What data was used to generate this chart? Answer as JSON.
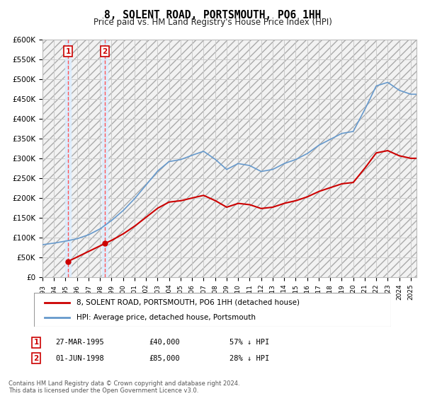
{
  "title": "8, SOLENT ROAD, PORTSMOUTH, PO6 1HH",
  "subtitle": "Price paid vs. HM Land Registry's House Price Index (HPI)",
  "footer": "Contains HM Land Registry data © Crown copyright and database right 2024.\nThis data is licensed under the Open Government Licence v3.0.",
  "legend_line1": "8, SOLENT ROAD, PORTSMOUTH, PO6 1HH (detached house)",
  "legend_line2": "HPI: Average price, detached house, Portsmouth",
  "transaction1_label": "1",
  "transaction1_date": "27-MAR-1995",
  "transaction1_price": "£40,000",
  "transaction1_hpi": "57% ↓ HPI",
  "transaction2_label": "2",
  "transaction2_date": "01-JUN-1998",
  "transaction2_price": "£85,000",
  "transaction2_hpi": "28% ↓ HPI",
  "ylim": [
    0,
    600000
  ],
  "yticks": [
    0,
    50000,
    100000,
    150000,
    200000,
    250000,
    300000,
    350000,
    400000,
    450000,
    500000,
    550000,
    600000
  ],
  "ytick_labels": [
    "£0",
    "£50K",
    "£100K",
    "£150K",
    "£200K",
    "£250K",
    "£300K",
    "£350K",
    "£400K",
    "£450K",
    "£500K",
    "£550K",
    "£600K"
  ],
  "hpi_color": "#6699cc",
  "price_color": "#cc0000",
  "grid_color": "#cccccc",
  "transaction1_x": 1995.23,
  "transaction1_y": 40000,
  "transaction2_x": 1998.42,
  "transaction2_y": 85000,
  "xmin": 1993.0,
  "xmax": 2025.5,
  "xtick_years": [
    1993,
    1994,
    1995,
    1996,
    1997,
    1998,
    1999,
    2000,
    2001,
    2002,
    2003,
    2004,
    2005,
    2006,
    2007,
    2008,
    2009,
    2010,
    2011,
    2012,
    2013,
    2014,
    2015,
    2016,
    2017,
    2018,
    2019,
    2020,
    2021,
    2022,
    2023,
    2024,
    2025
  ],
  "years_hpi": [
    1993,
    1994,
    1995,
    1996,
    1997,
    1998,
    1999,
    2000,
    2001,
    2002,
    2003,
    2004,
    2005,
    2006,
    2007,
    2008,
    2009,
    2010,
    2011,
    2012,
    2013,
    2014,
    2015,
    2016,
    2017,
    2018,
    2019,
    2020,
    2021,
    2022,
    2023,
    2024,
    2025
  ],
  "hpi_values": [
    82000,
    86000,
    91000,
    97000,
    107000,
    122000,
    143000,
    168000,
    198000,
    233000,
    268000,
    292000,
    297000,
    308000,
    318000,
    298000,
    272000,
    287000,
    282000,
    267000,
    272000,
    287000,
    297000,
    312000,
    333000,
    348000,
    363000,
    368000,
    423000,
    483000,
    492000,
    472000,
    462000
  ]
}
